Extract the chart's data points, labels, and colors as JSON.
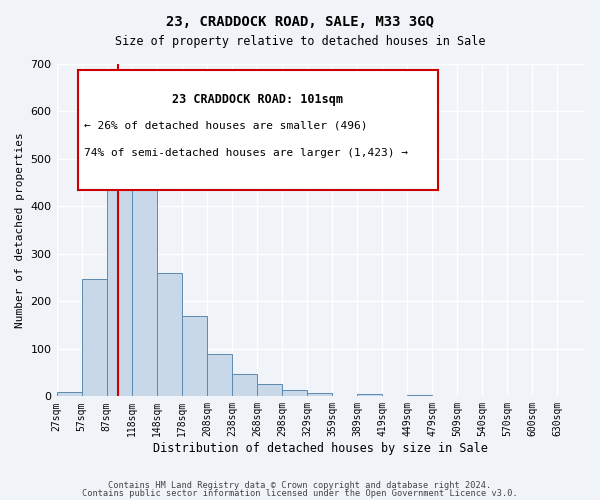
{
  "title": "23, CRADDOCK ROAD, SALE, M33 3GQ",
  "subtitle": "Size of property relative to detached houses in Sale",
  "xlabel": "Distribution of detached houses by size in Sale",
  "ylabel": "Number of detached properties",
  "bar_labels": [
    "27sqm",
    "57sqm",
    "87sqm",
    "118sqm",
    "148sqm",
    "178sqm",
    "208sqm",
    "238sqm",
    "268sqm",
    "298sqm",
    "329sqm",
    "359sqm",
    "389sqm",
    "419sqm",
    "449sqm",
    "479sqm",
    "509sqm",
    "540sqm",
    "570sqm",
    "600sqm",
    "630sqm"
  ],
  "bar_values": [
    10,
    248,
    575,
    490,
    260,
    170,
    90,
    48,
    27,
    13,
    8,
    0,
    5,
    0,
    3,
    0,
    0,
    0,
    0,
    0,
    0
  ],
  "bar_color": "#c8d8e8",
  "bar_edge_color": "#5a8ab0",
  "red_line_x": 101,
  "x_min": 27,
  "x_max": 630,
  "bin_width": 30,
  "ylim": [
    0,
    700
  ],
  "yticks": [
    0,
    100,
    200,
    300,
    400,
    500,
    600,
    700
  ],
  "annotation_title": "23 CRADDOCK ROAD: 101sqm",
  "annotation_line1": "← 26% of detached houses are smaller (496)",
  "annotation_line2": "74% of semi-detached houses are larger (1,423) →",
  "footer1": "Contains HM Land Registry data © Crown copyright and database right 2024.",
  "footer2": "Contains public sector information licensed under the Open Government Licence v3.0.",
  "background_color": "#f0f4f8",
  "grid_color": "#ffffff",
  "box_color": "#cc0000"
}
